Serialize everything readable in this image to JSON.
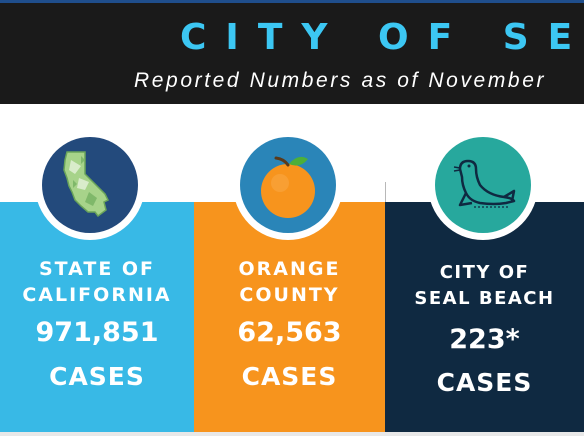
{
  "header": {
    "title": "CITY OF SEAL BEACH",
    "subtitle": "Reported Numbers as of November"
  },
  "colors": {
    "header_bg": "#1a1a1a",
    "title": "#3cc7f3",
    "california": "#38b9e6",
    "orange_county": "#f7941d",
    "seal_beach": "#0f2941"
  },
  "cards": [
    {
      "icon": "california-map-icon",
      "label_line1": "STATE OF",
      "label_line2": "CALIFORNIA",
      "count": "971,851",
      "unit": "CASES"
    },
    {
      "icon": "orange-fruit-icon",
      "label_line1": "ORANGE",
      "label_line2": "COUNTY",
      "count": "62,563",
      "unit": "CASES"
    },
    {
      "icon": "seal-icon",
      "label_line1": "CITY OF",
      "label_line2": "SEAL BEACH",
      "count": "223*",
      "unit": "CASES"
    }
  ]
}
